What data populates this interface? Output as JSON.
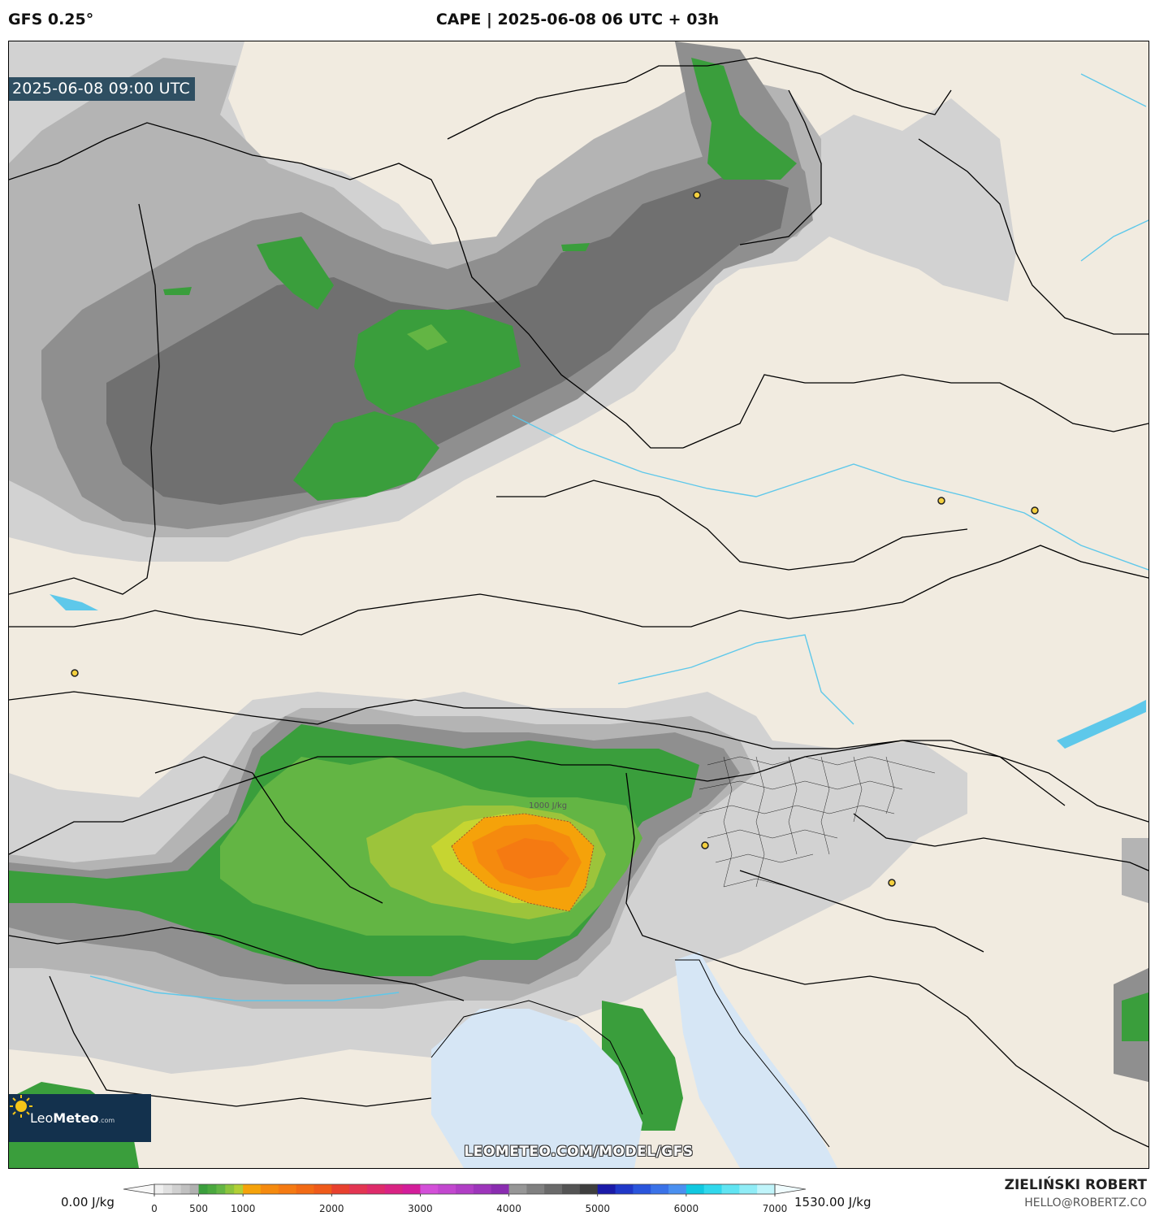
{
  "header": {
    "model": "GFS 0.25°",
    "title": "CAPE | 2025-06-08 06 UTC + 03h"
  },
  "map": {
    "valid_time": "2025-06-08 09:00 UTC",
    "watermark": "LEOMETEO.COM/MODEL/GFS",
    "contour_label": "1000 J/kg",
    "logo": {
      "name": "LeoMeteo",
      "prefix": "Leo",
      "suffix": "Meteo",
      "domain": ".com",
      "icon": "sun-icon"
    },
    "colors": {
      "land": "#f1ebe0",
      "sea": "#d6e6f5",
      "borders": "#000000",
      "rivers": "#5ec8ea"
    }
  },
  "legend": {
    "min_label": "0.00 J/kg",
    "max_label": "1530.00 J/kg",
    "ticks": [
      "0",
      "500",
      "1000",
      "2000",
      "3000",
      "4000",
      "5000",
      "6000",
      "7000"
    ],
    "tick_values": [
      0,
      500,
      1000,
      2000,
      3000,
      4000,
      5000,
      6000,
      7000
    ],
    "range": [
      0,
      7000
    ]
  },
  "credits": {
    "name": "ZIELIŃSKI ROBERT",
    "email": "HELLO@ROBERTZ.CO"
  }
}
